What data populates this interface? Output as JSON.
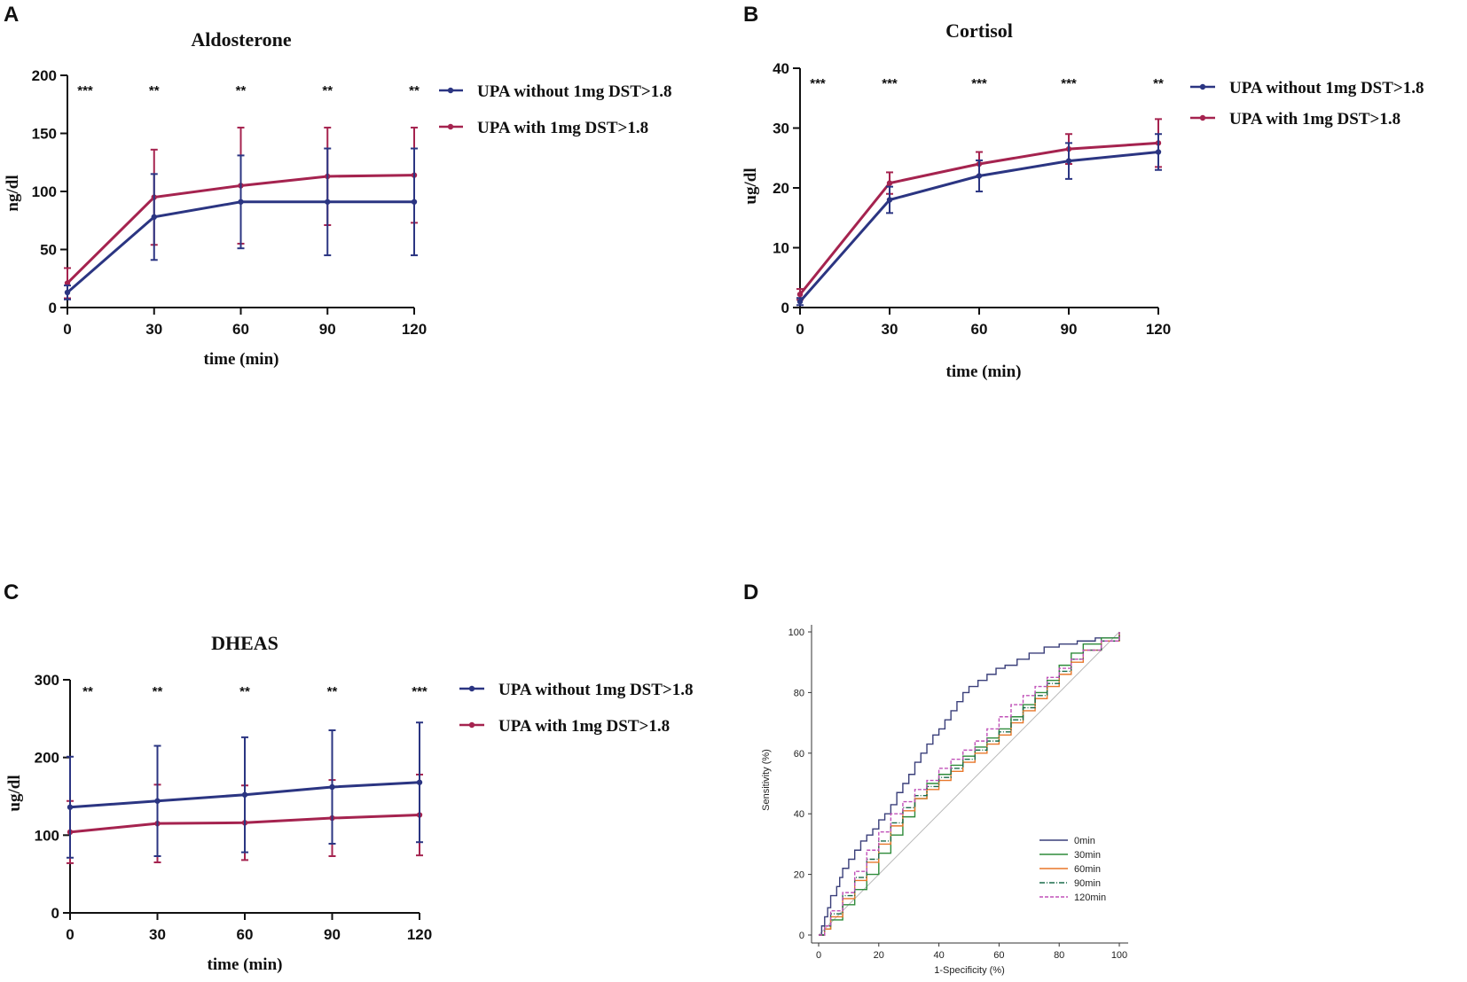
{
  "panels": {
    "A": {
      "letter": "A"
    },
    "B": {
      "letter": "B"
    },
    "C": {
      "letter": "C"
    },
    "D": {
      "letter": "D"
    }
  },
  "colors": {
    "without": "#2b3582",
    "with": "#a5234f"
  },
  "chart_data": [
    {
      "id": "aldosterone",
      "type": "line",
      "title": "Aldosterone",
      "xlabel": "time (min)",
      "ylabel": "ng/dl",
      "x": [
        0,
        30,
        60,
        90,
        120
      ],
      "x_ticks": [
        "0",
        "30",
        "60",
        "90",
        "120"
      ],
      "y_ticks": [
        "0",
        "50",
        "100",
        "150",
        "200"
      ],
      "ylim": [
        0,
        200
      ],
      "significance": [
        "***",
        "**",
        "**",
        "**",
        "**"
      ],
      "series": [
        {
          "name": "UPA without 1mg DST>1.8",
          "key": "without",
          "values": [
            13,
            78,
            91,
            91,
            91
          ],
          "error": [
            6,
            37,
            40,
            46,
            46
          ]
        },
        {
          "name": "UPA with 1mg DST>1.8",
          "key": "with",
          "values": [
            21,
            95,
            105,
            113,
            114
          ],
          "error": [
            13,
            41,
            50,
            42,
            41
          ]
        }
      ]
    },
    {
      "id": "cortisol",
      "type": "line",
      "title": "Cortisol",
      "xlabel": "time (min)",
      "ylabel": "ug/dl",
      "x": [
        0,
        30,
        60,
        90,
        120
      ],
      "x_ticks": [
        "0",
        "30",
        "60",
        "90",
        "120"
      ],
      "y_ticks": [
        "0",
        "10",
        "20",
        "30",
        "40"
      ],
      "ylim": [
        0,
        40
      ],
      "significance": [
        "***",
        "***",
        "***",
        "***",
        "**"
      ],
      "series": [
        {
          "name": "UPA without 1mg DST>1.8",
          "key": "without",
          "values": [
            1,
            18,
            22,
            24.5,
            26
          ],
          "error": [
            0.6,
            2.2,
            2.6,
            3,
            3
          ]
        },
        {
          "name": "UPA with 1mg DST>1.8",
          "key": "with",
          "values": [
            2.2,
            20.8,
            24,
            26.5,
            27.5
          ],
          "error": [
            0.9,
            1.8,
            2,
            2.5,
            4
          ]
        }
      ]
    },
    {
      "id": "dheas",
      "type": "line",
      "title": "DHEAS",
      "xlabel": "time (min)",
      "ylabel": "ug/dl",
      "x": [
        0,
        30,
        60,
        90,
        120
      ],
      "x_ticks": [
        "0",
        "30",
        "60",
        "90",
        "120"
      ],
      "y_ticks": [
        "0",
        "100",
        "200",
        "300"
      ],
      "ylim": [
        0,
        300
      ],
      "significance": [
        "**",
        "**",
        "**",
        "**",
        "***"
      ],
      "series": [
        {
          "name": "UPA without 1mg DST>1.8",
          "key": "without",
          "values": [
            136,
            144,
            152,
            162,
            168
          ],
          "error": [
            65,
            71,
            74,
            73,
            77
          ]
        },
        {
          "name": "UPA with 1mg DST>1.8",
          "key": "with",
          "values": [
            104,
            115,
            116,
            122,
            126
          ],
          "error": [
            40,
            50,
            48,
            49,
            52
          ]
        }
      ]
    },
    {
      "id": "roc",
      "type": "line",
      "title": "",
      "xlabel": "1-Specificity (%)",
      "ylabel": "Sensitivity (%)",
      "x_ticks": [
        "0",
        "20",
        "40",
        "60",
        "80",
        "100"
      ],
      "y_ticks": [
        "0",
        "20",
        "40",
        "60",
        "80",
        "100"
      ],
      "xlim": [
        0,
        100
      ],
      "ylim": [
        0,
        100
      ],
      "reference_line": true,
      "series": [
        {
          "name": "0min",
          "color": "#3a3f7a",
          "dash": "",
          "points": [
            [
              0,
              0
            ],
            [
              1,
              3
            ],
            [
              2,
              6
            ],
            [
              3,
              9
            ],
            [
              4,
              13
            ],
            [
              6,
              16
            ],
            [
              7,
              19
            ],
            [
              8,
              22
            ],
            [
              10,
              25
            ],
            [
              12,
              28
            ],
            [
              14,
              31
            ],
            [
              16,
              33
            ],
            [
              18,
              35
            ],
            [
              20,
              38
            ],
            [
              22,
              40
            ],
            [
              24,
              43
            ],
            [
              26,
              47
            ],
            [
              28,
              50
            ],
            [
              30,
              53
            ],
            [
              32,
              57
            ],
            [
              34,
              60
            ],
            [
              36,
              63
            ],
            [
              38,
              66
            ],
            [
              40,
              68
            ],
            [
              42,
              71
            ],
            [
              44,
              74
            ],
            [
              46,
              77
            ],
            [
              48,
              80
            ],
            [
              50,
              82
            ],
            [
              53,
              84
            ],
            [
              56,
              86
            ],
            [
              59,
              88
            ],
            [
              62,
              89
            ],
            [
              66,
              91
            ],
            [
              70,
              93
            ],
            [
              75,
              95
            ],
            [
              80,
              96
            ],
            [
              86,
              97
            ],
            [
              92,
              98
            ],
            [
              100,
              100
            ]
          ]
        },
        {
          "name": "30min",
          "color": "#2e8b3a",
          "dash": "",
          "points": [
            [
              0,
              0
            ],
            [
              2,
              2
            ],
            [
              4,
              5
            ],
            [
              8,
              10
            ],
            [
              12,
              15
            ],
            [
              16,
              20
            ],
            [
              20,
              27
            ],
            [
              24,
              33
            ],
            [
              28,
              39
            ],
            [
              32,
              45
            ],
            [
              36,
              50
            ],
            [
              40,
              53
            ],
            [
              44,
              56
            ],
            [
              48,
              59
            ],
            [
              52,
              62
            ],
            [
              56,
              65
            ],
            [
              60,
              68
            ],
            [
              64,
              72
            ],
            [
              68,
              76
            ],
            [
              72,
              80
            ],
            [
              76,
              84
            ],
            [
              80,
              89
            ],
            [
              84,
              93
            ],
            [
              88,
              96
            ],
            [
              94,
              98
            ],
            [
              100,
              100
            ]
          ]
        },
        {
          "name": "60min",
          "color": "#e8772a",
          "dash": "",
          "points": [
            [
              0,
              0
            ],
            [
              2,
              2
            ],
            [
              4,
              6
            ],
            [
              8,
              12
            ],
            [
              12,
              18
            ],
            [
              16,
              24
            ],
            [
              20,
              30
            ],
            [
              24,
              36
            ],
            [
              28,
              41
            ],
            [
              32,
              45
            ],
            [
              36,
              48
            ],
            [
              40,
              51
            ],
            [
              44,
              54
            ],
            [
              48,
              57
            ],
            [
              52,
              60
            ],
            [
              56,
              63
            ],
            [
              60,
              66
            ],
            [
              64,
              70
            ],
            [
              68,
              74
            ],
            [
              72,
              78
            ],
            [
              76,
              82
            ],
            [
              80,
              86
            ],
            [
              84,
              90
            ],
            [
              88,
              94
            ],
            [
              94,
              97
            ],
            [
              100,
              100
            ]
          ]
        },
        {
          "name": "90min",
          "color": "#1a6b4a",
          "dash": "6,2,1,2",
          "points": [
            [
              0,
              0
            ],
            [
              2,
              3
            ],
            [
              4,
              7
            ],
            [
              8,
              13
            ],
            [
              12,
              19
            ],
            [
              16,
              25
            ],
            [
              20,
              31
            ],
            [
              24,
              37
            ],
            [
              28,
              42
            ],
            [
              32,
              46
            ],
            [
              36,
              49
            ],
            [
              40,
              52
            ],
            [
              44,
              55
            ],
            [
              48,
              58
            ],
            [
              52,
              61
            ],
            [
              56,
              64
            ],
            [
              60,
              67
            ],
            [
              64,
              71
            ],
            [
              68,
              75
            ],
            [
              72,
              79
            ],
            [
              76,
              83
            ],
            [
              80,
              87
            ],
            [
              84,
              91
            ],
            [
              88,
              94
            ],
            [
              94,
              97
            ],
            [
              100,
              100
            ]
          ]
        },
        {
          "name": "120min",
          "color": "#c050b8",
          "dash": "4,2",
          "points": [
            [
              0,
              0
            ],
            [
              2,
              3
            ],
            [
              4,
              8
            ],
            [
              8,
              14
            ],
            [
              12,
              21
            ],
            [
              16,
              28
            ],
            [
              20,
              34
            ],
            [
              24,
              40
            ],
            [
              28,
              44
            ],
            [
              32,
              48
            ],
            [
              36,
              51
            ],
            [
              40,
              55
            ],
            [
              44,
              58
            ],
            [
              48,
              61
            ],
            [
              52,
              64
            ],
            [
              56,
              68
            ],
            [
              60,
              72
            ],
            [
              64,
              76
            ],
            [
              68,
              79
            ],
            [
              72,
              82
            ],
            [
              76,
              85
            ],
            [
              80,
              88
            ],
            [
              84,
              91
            ],
            [
              88,
              94
            ],
            [
              94,
              97
            ],
            [
              100,
              100
            ]
          ]
        }
      ]
    }
  ]
}
